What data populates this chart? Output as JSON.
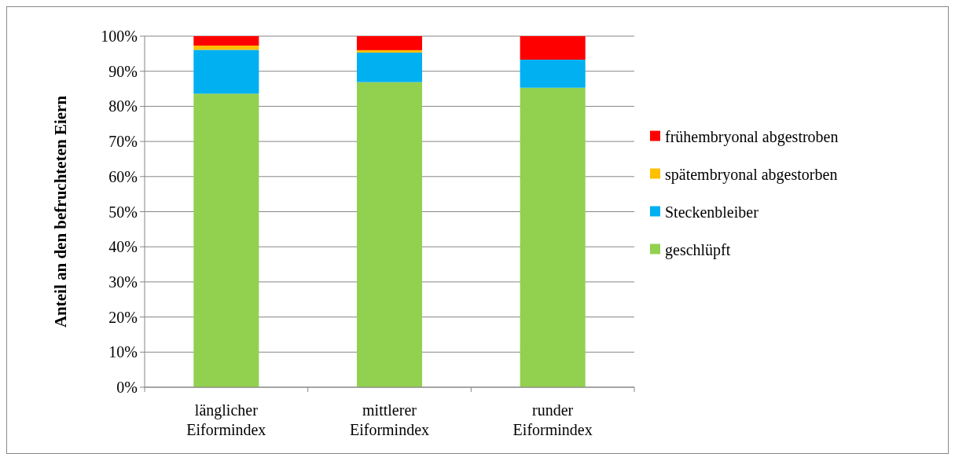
{
  "chart_data": {
    "type": "bar",
    "stacked": true,
    "ylabel": "Anteil an den befruchteten Eiern",
    "categories": [
      "länglicher Eiformindex",
      "mittlerer Eiformindex",
      "runder Eiformindex"
    ],
    "series": [
      {
        "name": "geschlüpft",
        "color": "#92d050",
        "values": [
          83.6,
          86.9,
          85.3
        ]
      },
      {
        "name": "Steckenbleiber",
        "color": "#00b0f0",
        "values": [
          12.5,
          8.4,
          8.0
        ]
      },
      {
        "name": "spätembryonal abgestorben",
        "color": "#ffc000",
        "values": [
          1.2,
          0.7,
          0
        ]
      },
      {
        "name": "frühembryonal abgestroben",
        "color": "#ff0000",
        "values": [
          2.7,
          4.0,
          6.7
        ]
      }
    ],
    "ylim": [
      0,
      100
    ],
    "yticks": [
      {
        "value": 0,
        "label": "0%"
      },
      {
        "value": 10,
        "label": "10%"
      },
      {
        "value": 20,
        "label": "20%"
      },
      {
        "value": 30,
        "label": "30%"
      },
      {
        "value": 40,
        "label": "40%"
      },
      {
        "value": 50,
        "label": "50%"
      },
      {
        "value": 60,
        "label": "60%"
      },
      {
        "value": 70,
        "label": "70%"
      },
      {
        "value": 80,
        "label": "80%"
      },
      {
        "value": 90,
        "label": "90%"
      },
      {
        "value": 100,
        "label": "100%"
      }
    ],
    "grid": "y",
    "legend": "right"
  }
}
